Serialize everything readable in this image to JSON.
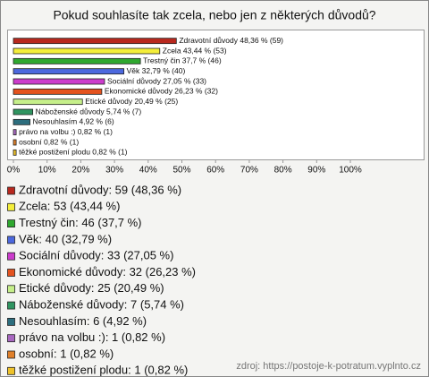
{
  "chart_data": {
    "type": "hbar",
    "title": "Pokud souhlasíte tak zcela, nebo jen z některých důvodů?",
    "categories": [
      "Zdravotní důvody",
      "Zcela",
      "Trestný čin",
      "Věk",
      "Sociální důvody",
      "Ekonomické důvody",
      "Etické důvody",
      "Náboženské důvody",
      "Nesouhlasím",
      "právo na volbu :)",
      "osobní",
      "těžké postižení plodu"
    ],
    "values": [
      48.36,
      43.44,
      37.7,
      32.79,
      27.05,
      26.23,
      20.49,
      5.74,
      4.92,
      0.82,
      0.82,
      0.82
    ],
    "value_labels": [
      "Zdravotní důvody 48,36 % (59)",
      "Zcela 43,44 % (53)",
      "Trestný čin 37,7 % (46)",
      "Věk 32,79 % (40)",
      "Sociální důvody 27,05 % (33)",
      "Ekonomické důvody 26,23 % (32)",
      "Etické důvody 20,49 % (25)",
      "Náboženské důvody 5,74 % (7)",
      "Nesouhlasím 4,92 % (6)",
      "právo na volbu :) 0,82 % (1)",
      "osobní 0,82 % (1)",
      "těžké postižení plodu 0,82 % (1)"
    ],
    "legend_labels": [
      "Zdravotní důvody: 59 (48,36 %)",
      "Zcela: 53 (43,44 %)",
      "Trestný čin: 46 (37,7 %)",
      "Věk: 40 (32,79 %)",
      "Sociální důvody: 33 (27,05 %)",
      "Ekonomické důvody: 32 (26,23 %)",
      "Etické důvody: 25 (20,49 %)",
      "Náboženské důvody: 7 (5,74 %)",
      "Nesouhlasím: 6 (4,92 %)",
      "právo na volbu :): 1 (0,82 %)",
      "osobní: 1 (0,82 %)",
      "těžké postižení plodu: 1 (0,82 %)"
    ],
    "colors": [
      "#b8281e",
      "#f4ee3a",
      "#2fa82f",
      "#4c68de",
      "#cc3ccc",
      "#e4531f",
      "#c6ef8a",
      "#2f9460",
      "#2d6e7e",
      "#a868c0",
      "#e0802a",
      "#eec22a"
    ],
    "xlim": [
      0,
      100
    ],
    "xticks": [
      {
        "value": 0,
        "label": "0%"
      },
      {
        "value": 10,
        "label": "10%"
      },
      {
        "value": 20,
        "label": "20%"
      },
      {
        "value": 30,
        "label": "30%"
      },
      {
        "value": 40,
        "label": "40%"
      },
      {
        "value": 50,
        "label": "50%"
      },
      {
        "value": 60,
        "label": "60%"
      },
      {
        "value": 70,
        "label": "70%"
      },
      {
        "value": 80,
        "label": "80%"
      },
      {
        "value": 90,
        "label": "90%"
      },
      {
        "value": 100,
        "label": "100%"
      }
    ],
    "grid": false,
    "source": "zdroj: https://postoje-k-potratum.vyplnto.cz"
  }
}
